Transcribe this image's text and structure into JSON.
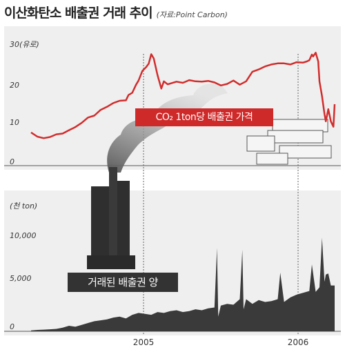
{
  "header": {
    "title": "이산화탄소 배출권 거래 추이",
    "source": "(자료:Point Carbon)"
  },
  "labels": {
    "price_label": "CO₂ 1ton당 배출권 가격",
    "volume_label": "거래된 배출권 양"
  },
  "colors": {
    "price_line": "#d22c2c",
    "volume_area": "#3a3a3a",
    "panel_bg": "#efefef",
    "label_red": "#cf2a2a",
    "label_dark": "#333333"
  },
  "chart_data": [
    {
      "type": "line",
      "title": "CO₂ 1ton당 배출권 가격",
      "ylabel": "30(유로)",
      "y_ticks": [
        "30(유로)",
        "20",
        "10",
        "0"
      ],
      "x_ticks": [
        "2005",
        "2006"
      ],
      "ylim": [
        0,
        32
      ],
      "xlim": [
        2004.05,
        2006.45
      ],
      "series": [
        {
          "x": [
            2004.05,
            2004.1,
            2004.15,
            2004.2,
            2004.25,
            2004.3,
            2004.35,
            2004.4,
            2004.45,
            2004.5,
            2004.55,
            2004.6,
            2004.65,
            2004.7,
            2004.75,
            2004.8,
            2004.82,
            2004.85,
            2004.88,
            2004.9,
            2004.93,
            2004.96,
            2004.98,
            2005.0,
            2005.02,
            2005.05,
            2005.08,
            2005.1,
            2005.13,
            2005.2,
            2005.25,
            2005.3,
            2005.35,
            2005.4,
            2005.45,
            2005.5,
            2005.55,
            2005.6,
            2005.65,
            2005.7,
            2005.75,
            2005.8,
            2005.85,
            2005.9,
            2005.95,
            2006.0,
            2006.05,
            2006.1,
            2006.15,
            2006.2,
            2006.23,
            2006.25,
            2006.27,
            2006.28,
            2006.3,
            2006.32,
            2006.33,
            2006.35,
            2006.37,
            2006.38,
            2006.4,
            2006.42,
            2006.44,
            2006.45
          ],
          "values": [
            8.7,
            7.6,
            7.2,
            7.5,
            8.2,
            8.4,
            9.3,
            10.1,
            11.2,
            12.6,
            13.1,
            14.6,
            15.4,
            16.4,
            17.0,
            17.1,
            18.5,
            19.1,
            21.2,
            22.3,
            24.8,
            25.8,
            26.7,
            29.2,
            28.1,
            23.7,
            20.2,
            22.1,
            21.3,
            22.0,
            21.7,
            22.4,
            22.1,
            22.0,
            22.2,
            21.8,
            21.0,
            21.4,
            22.3,
            21.2,
            22.1,
            24.6,
            25.2,
            26.0,
            26.5,
            26.8,
            26.8,
            26.5,
            27.1,
            27.0,
            27.3,
            27.6,
            29.1,
            28.6,
            29.6,
            27.3,
            22.1,
            18.2,
            13.5,
            11.6,
            14.8,
            11.6,
            10.2,
            16.1
          ]
        }
      ]
    },
    {
      "type": "area",
      "title": "거래된 배출권 양",
      "ylabel": "(천 ton)",
      "y_ticks": [
        "(천 ton)",
        "10,000",
        "5,000",
        "0"
      ],
      "x_ticks": [
        "2005",
        "2006"
      ],
      "ylim": [
        0,
        12500
      ],
      "xlim": [
        2004.05,
        2006.45
      ],
      "series": [
        {
          "x": [
            2004.05,
            2004.1,
            2004.15,
            2004.2,
            2004.25,
            2004.3,
            2004.35,
            2004.4,
            2004.45,
            2004.5,
            2004.55,
            2004.6,
            2004.65,
            2004.7,
            2004.75,
            2004.8,
            2004.85,
            2004.9,
            2004.95,
            2005.0,
            2005.05,
            2005.1,
            2005.15,
            2005.2,
            2005.25,
            2005.3,
            2005.35,
            2005.4,
            2005.45,
            2005.5,
            2005.52,
            2005.53,
            2005.55,
            2005.6,
            2005.65,
            2005.7,
            2005.72,
            2005.73,
            2005.75,
            2005.8,
            2005.85,
            2005.9,
            2005.95,
            2006.0,
            2006.02,
            2006.05,
            2006.1,
            2006.15,
            2006.2,
            2006.25,
            2006.27,
            2006.3,
            2006.33,
            2006.35,
            2006.37,
            2006.38,
            2006.4,
            2006.42,
            2006.45
          ],
          "values": [
            100,
            150,
            180,
            220,
            260,
            400,
            600,
            500,
            700,
            900,
            1100,
            1200,
            1300,
            1500,
            1600,
            1400,
            1800,
            2000,
            1900,
            1800,
            2100,
            2000,
            2200,
            2300,
            2100,
            2200,
            2400,
            2300,
            2500,
            2600,
            9100,
            1600,
            2800,
            3000,
            2900,
            3500,
            8900,
            2400,
            3500,
            3000,
            3400,
            3200,
            3300,
            3500,
            6400,
            3200,
            3700,
            4000,
            4200,
            4400,
            7300,
            4300,
            4800,
            10200,
            5400,
            6200,
            6300,
            5000,
            5000
          ]
        }
      ]
    }
  ]
}
